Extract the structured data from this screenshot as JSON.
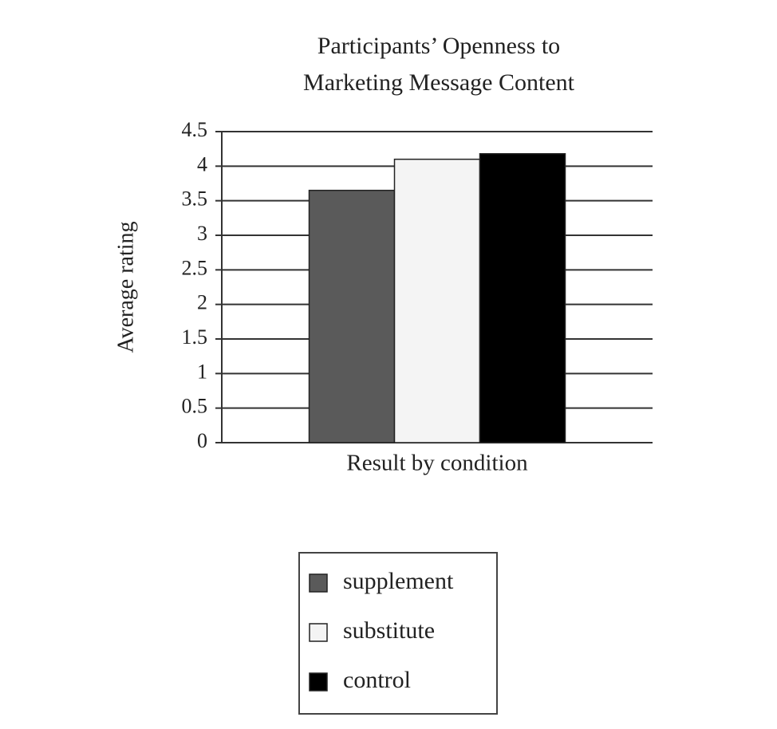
{
  "chart_data": {
    "type": "bar",
    "title": [
      "Participants’ Openness to",
      "Marketing Message Content"
    ],
    "y_label": "Average rating",
    "categories": [
      "Result by condition"
    ],
    "series": [
      {
        "name": "supplement",
        "color": "#5a5a5a",
        "values": [
          3.65
        ]
      },
      {
        "name": "substitute",
        "color": "#f4f4f4",
        "values": [
          4.1
        ]
      },
      {
        "name": "control",
        "color": "#000000",
        "values": [
          4.18
        ]
      }
    ],
    "ylim": [
      0,
      4.5
    ],
    "yticks": [
      0,
      0.5,
      1,
      1.5,
      2,
      2.5,
      3,
      3.5,
      4,
      4.5
    ],
    "grid": true,
    "legend": "bottom"
  }
}
